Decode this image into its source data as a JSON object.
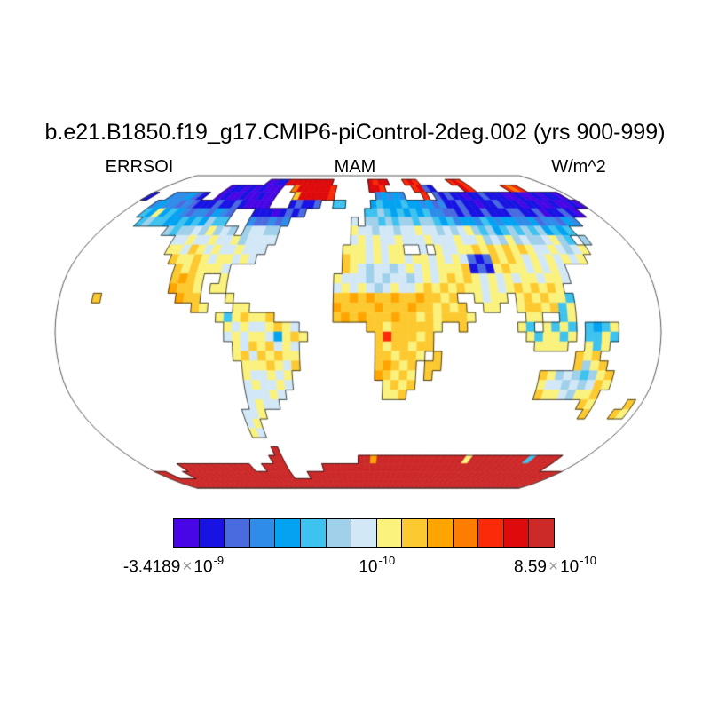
{
  "title": "b.e21.B1850.f19_g17.CMIP6-piControl-2deg.002 (yrs 900-999)",
  "header": {
    "left_label": "ERRSOI",
    "center_label": "MAM",
    "right_label": "W/m^2"
  },
  "colors": {
    "background": "#ffffff",
    "map_outline": "#444444",
    "coastline": "#000000",
    "times_sign": "#9a9a9a",
    "text": "#000000"
  },
  "chart_data": {
    "type": "heatmap",
    "projection": "robinson",
    "variable": "ERRSOI",
    "season": "MAM",
    "units": "W/m^2",
    "title": "b.e21.B1850.f19_g17.CMIP6-piControl-2deg.002 (yrs 900-999)",
    "colorbar": {
      "colors": [
        "#4806e6",
        "#1813e3",
        "#4a6be0",
        "#2f8ce9",
        "#03a3f2",
        "#3ec2ef",
        "#a0d0ea",
        "#d3e8f7",
        "#faf27d",
        "#fdc930",
        "#fea502",
        "#fd7d03",
        "#fb2a09",
        "#de0a0c",
        "#cc2929"
      ],
      "ticks": [
        {
          "label": "-3.4189x10^-9",
          "mantissa": "-3.4189",
          "base": "10",
          "exp": "-9",
          "value": -3.4189e-09,
          "pos": 0
        },
        {
          "label": "10^-10",
          "mantissa": "",
          "base": "10",
          "exp": "-10",
          "value": 1e-10,
          "pos": 0.5333
        },
        {
          "label": "8.59x10^-10",
          "mantissa": "8.59",
          "base": "10",
          "exp": "-10",
          "value": 8.59e-10,
          "pos": 1
        }
      ]
    },
    "grid": {
      "cell_deg": 5,
      "lat_start": 90,
      "lon_start": -180,
      "encoding": "each row = one 5-degree latitude band from 90N down to 90S, chars run west (180W) to east (180E); '.' = no data (ocean); chars 0-9 and a-e = colorbar color index 0-14",
      "rows": [
        [
          "............",
          "............",
          "............",
          "............",
          "............",
          "............"
        ],
        [
          "............",
          "......0011dd",
          "ddddddd.....",
          "..dcdd...cdc",
          "......cdc...",
          "............"
        ],
        [
          "............",
          "0110101000..",
          "bddddddc....",
          "..ddc.....cd",
          "21.....dc...",
          "...cbc......"
        ],
        [
          "1...333421..",
          "0100100100..",
          ".9dddddc....",
          "...34343...c",
          ".21211011211",
          "10010010110."
        ],
        [
          "...343323211",
          "1211210000..",
          ".12112..55..",
          "..4544454434",
          "231121101121",
          "110110010010"
        ],
        [
          "...548454323",
          "32432...1110",
          "1212........",
          ".55654545453",
          "322121121112",
          "2112011210.."
        ],
        [
          "....56554454",
          "54655...3223",
          "23.........7",
          ".66565665665",
          "453443543443",
          "34233243...."
        ],
        [
          ".........656",
          "6768676.6776",
          "6..........8",
          "776776778776",
          "767865645656",
          "564545......"
        ],
        [
          "...........7",
          "787787786777",
          "7..........7",
          "878778777877",
          "787786768676",
          "67865.6....."
        ],
        [
          "...........8",
          "879878778777",
          "..........88",
          "878788..7.87",
          "788989898987",
          "787678......"
        ],
        [
          "............",
          "98898788787.",
          "..........98",
          "878788788787",
          "872129898787",
          "87878......."
        ],
        [
          "............",
          ".9898887....",
          "..........98",
          "767767878788",
          "891218988787",
          "87.........."
        ],
        [
          "............",
          ".9a98..8....",
          ".........877",
          "767677678789",
          "898787878878",
          "87.........."
        ],
        [
          "............",
          ".a998.88....",
          ".........787",
          "876787789898",
          "988787898989",
          "8..........."
        ],
        [
          "....9.......",
          "..a99...8...",
          ".........99a",
          "9a99a99a9989",
          "..8788.89898",
          "85.........."
        ],
        [
          "............",
          "....98...88.",
          ".........a99",
          "99a999a99898",
          "9..88..89989",
          "58.........."
        ],
        [
          "............",
          ".......85898",
          "89.......9a9",
          "a999a9989899",
          "98......88..",
          "58.........."
        ],
        [
          "............",
          "........8787",
          "78987.......",
          ".998999998..",
          "9......85.85",
          "85.5458....."
        ],
        [
          "............",
          "........7878",
          "874898......",
          "..9c99989...",
          "........8588",
          "58.5585....."
        ],
        [
          "............",
          ".........879",
          "89787.......",
          "..9899899...",
          ".........888",
          "8..858......"
        ],
        [
          "............",
          ".........897",
          "98988.......",
          "..998998.9..",
          "............",
          "..989......."
        ],
        [
          "............",
          "..........88",
          "89879.......",
          "..9a989.99..",
          "............",
          "..9689......"
        ],
        [
          "............",
          "..........87",
          "7878........",
          "..a9898.9...",
          "..........98",
          "6765689....."
        ],
        [
          "............",
          "..........78",
          "7787........",
          "...8989.....",
          "..........87",
          "7676798....."
        ],
        [
          "............",
          "..........77",
          "787.........",
          "...889......",
          "..........98",
          "876889......"
        ],
        [
          "............",
          "..........78",
          "77..........",
          "............",
          "............",
          "....98....9."
        ],
        [
          "............",
          ".........778",
          "............",
          "............",
          "............",
          ".....9...98."
        ],
        [
          "............",
          ".........78.",
          "............",
          "............",
          "............",
          "............"
        ],
        [
          "............",
          ".........87.",
          "............",
          "............",
          "............",
          "............"
        ],
        [
          "............",
          "............",
          "............",
          "............",
          "............",
          "............"
        ],
        [
          "............",
          "...........e",
          "............",
          "............",
          "............",
          "............"
        ],
        [
          "............",
          "..........ee",
          "............",
          "eeaeeeeeeeee",
          "eeeee8eeeeee",
          "eee5eeee...."
        ],
        [
          "......eeeeee",
          "eeeeee..eeee",
          "......eeeeee",
          "eeeeeeeeeeee",
          "eeeeeeeeeeee",
          "eeeeeeee...."
        ],
        [
          "ee...eeeeeee",
          "eeeeeeeeeeee",
          "...eeeeeeeee",
          "eeeeeeeeeeee",
          "eeeeeeeeeeee",
          "eeeeeeeeeeee"
        ],
        [
          "eeeeeeeeeeee",
          "eeeeeeeeeeee",
          "eeeeeeeeeeee",
          "eeeeeeeeeeee",
          "eeeeeeeeeeee",
          "eeeeeeeeeeee"
        ],
        [
          "eeeeeeeeeeee",
          "eeeeeeeeeeee",
          "eeeeeeeeeeee",
          "eeeeeeeeeeee",
          "eeeeeeeeeeee",
          "eeeeeeeeeeee"
        ]
      ]
    }
  }
}
